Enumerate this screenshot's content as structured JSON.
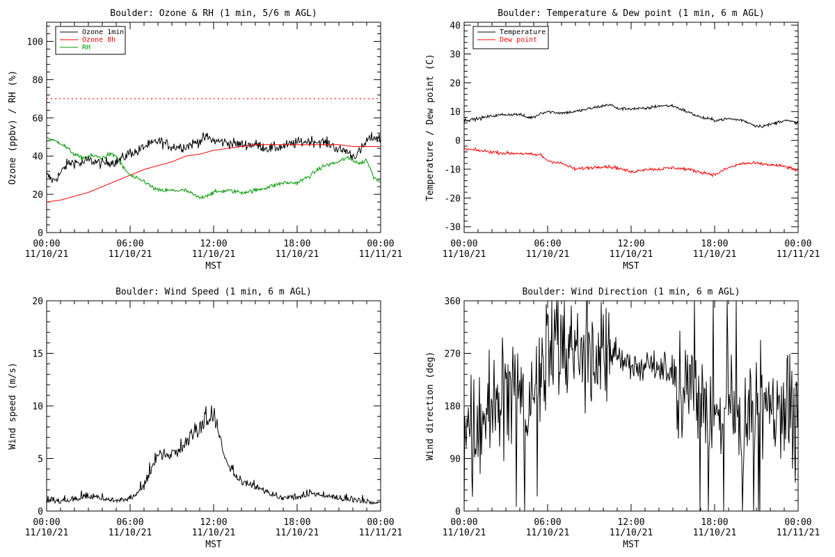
{
  "chart_data": [
    {
      "type": "line",
      "title": "Boulder: Ozone & RH (1 min, 5/6 m AGL)",
      "xlabel": "MST",
      "ylabel": "Ozone (ppbv) / RH (%)",
      "x_ticks": [
        {
          "hour": 0,
          "time": "00:00",
          "date": "11/10/21"
        },
        {
          "hour": 6,
          "time": "06:00",
          "date": "11/10/21"
        },
        {
          "hour": 12,
          "time": "12:00",
          "date": "11/10/21"
        },
        {
          "hour": 18,
          "time": "18:00",
          "date": "11/10/21"
        },
        {
          "hour": 24,
          "time": "00:00",
          "date": "11/11/21"
        }
      ],
      "xlim": [
        0,
        24
      ],
      "ylim": [
        0,
        110
      ],
      "y_ticks": [
        0,
        20,
        40,
        60,
        80,
        100
      ],
      "legend_position": "top-left",
      "reference_lines": [
        {
          "y": 70,
          "color": "#ff0000",
          "style": "dotted"
        }
      ],
      "series": [
        {
          "name": "Ozone 1min",
          "color": "#000000",
          "noise": 2,
          "x": [
            0,
            0.5,
            1,
            1.5,
            2,
            2.5,
            3,
            3.5,
            4,
            4.5,
            5,
            5.5,
            6,
            6.5,
            7,
            7.5,
            8,
            9,
            10,
            11,
            11.5,
            12,
            13,
            14,
            15,
            16,
            17,
            18,
            19,
            20,
            20.5,
            21,
            21.5,
            22,
            22.5,
            23,
            23.5,
            24
          ],
          "values": [
            30,
            27,
            31,
            36,
            37,
            36,
            38,
            37,
            36,
            37,
            37,
            39,
            42,
            42,
            45,
            46,
            48,
            45,
            45,
            48,
            50,
            48,
            47,
            46,
            46,
            44,
            45,
            47,
            48,
            47,
            46,
            43,
            43,
            40,
            42,
            48,
            50,
            49
          ]
        },
        {
          "name": "Ozone 8h",
          "color": "#ff0000",
          "noise": 0,
          "x": [
            0,
            1,
            2,
            3,
            4,
            5,
            6,
            7,
            8,
            9,
            10,
            11,
            12,
            13,
            14,
            15,
            16,
            17,
            18,
            19,
            20,
            21,
            22,
            23,
            24
          ],
          "values": [
            16,
            17,
            19,
            21,
            24,
            27,
            30,
            33,
            35,
            37,
            40,
            41,
            43,
            44,
            45,
            46,
            46,
            46,
            46,
            46,
            46,
            46,
            45,
            45,
            45
          ]
        },
        {
          "name": "RH",
          "color": "#009900",
          "noise": 0.8,
          "x": [
            0,
            0.5,
            1,
            1.5,
            2,
            2.5,
            3,
            3.5,
            4,
            4.5,
            5,
            5.5,
            6,
            6.5,
            7,
            7.5,
            8,
            9,
            10,
            11,
            12,
            13,
            14,
            15,
            16,
            17,
            18,
            19,
            19.5,
            20,
            20.5,
            21,
            21.5,
            22,
            22.5,
            23,
            23.5,
            24
          ],
          "values": [
            50,
            48,
            47,
            44,
            41,
            39,
            40,
            40,
            39,
            41,
            40,
            34,
            30,
            28,
            27,
            24,
            22,
            22,
            22,
            18,
            21,
            22,
            21,
            22,
            24,
            26,
            26,
            30,
            33,
            35,
            36,
            37,
            39,
            38,
            36,
            38,
            29,
            27
          ]
        }
      ]
    },
    {
      "type": "line",
      "title": "Boulder: Temperature & Dew point (1 min, 6 m AGL)",
      "xlabel": "MST",
      "ylabel": "Temperature / Dew point (C)",
      "x_ticks": [
        {
          "hour": 0,
          "time": "00:00",
          "date": "11/10/21"
        },
        {
          "hour": 6,
          "time": "06:00",
          "date": "11/10/21"
        },
        {
          "hour": 12,
          "time": "12:00",
          "date": "11/10/21"
        },
        {
          "hour": 18,
          "time": "18:00",
          "date": "11/10/21"
        },
        {
          "hour": 24,
          "time": "00:00",
          "date": "11/11/21"
        }
      ],
      "xlim": [
        0,
        24
      ],
      "ylim": [
        -32,
        41
      ],
      "y_ticks": [
        -30,
        -20,
        -10,
        0,
        10,
        20,
        30,
        40
      ],
      "legend_position": "top-left",
      "series": [
        {
          "name": "Temperature",
          "color": "#000000",
          "noise": 0.4,
          "x": [
            0,
            1,
            2,
            3,
            4,
            4.5,
            5,
            5.5,
            6,
            7,
            8,
            9,
            10,
            10.5,
            11,
            12,
            13,
            14,
            15,
            16,
            17,
            18,
            19,
            20,
            21,
            21.5,
            22,
            23,
            24
          ],
          "values": [
            7,
            7.5,
            8.5,
            9,
            9,
            8,
            8,
            9.5,
            10,
            9.5,
            10,
            11,
            12,
            12.5,
            11,
            11,
            11,
            12,
            12,
            10,
            8,
            7,
            7.5,
            7,
            5,
            5,
            5.5,
            7,
            6
          ]
        },
        {
          "name": "Dew point",
          "color": "#ff0000",
          "noise": 0.4,
          "x": [
            0,
            1,
            2,
            3,
            4,
            5,
            5.5,
            6,
            7,
            8,
            9,
            10,
            11,
            12,
            13,
            14,
            15,
            16,
            17,
            18,
            19,
            20,
            21,
            22,
            23,
            24
          ],
          "values": [
            -3,
            -3.5,
            -4,
            -4.5,
            -4.5,
            -5,
            -5,
            -7,
            -8,
            -10,
            -9.5,
            -9,
            -9.5,
            -11,
            -10,
            -10,
            -9.5,
            -10,
            -11,
            -12,
            -9.5,
            -8,
            -8,
            -8.5,
            -9,
            -10.5
          ]
        }
      ]
    },
    {
      "type": "line",
      "title": "Boulder: Wind Speed (1 min, 6 m AGL)",
      "xlabel": "MST",
      "ylabel": "Wind speed (m/s)",
      "x_ticks": [
        {
          "hour": 0,
          "time": "00:00",
          "date": "11/10/21"
        },
        {
          "hour": 6,
          "time": "06:00",
          "date": "11/10/21"
        },
        {
          "hour": 12,
          "time": "12:00",
          "date": "11/10/21"
        },
        {
          "hour": 18,
          "time": "18:00",
          "date": "11/10/21"
        },
        {
          "hour": 24,
          "time": "00:00",
          "date": "11/11/21"
        }
      ],
      "xlim": [
        0,
        24
      ],
      "ylim": [
        0,
        20
      ],
      "y_ticks": [
        0,
        5,
        10,
        15,
        20
      ],
      "series": [
        {
          "color": "#000000",
          "noise": 0.9,
          "x": [
            0,
            1,
            2,
            3,
            4,
            5,
            6,
            7,
            7.5,
            8,
            9,
            10,
            11,
            11.5,
            12,
            12.5,
            13,
            14,
            15,
            16,
            17,
            18,
            19,
            20,
            21,
            22,
            23,
            24
          ],
          "values": [
            0.8,
            0.7,
            0.9,
            1.2,
            1.0,
            0.8,
            1.0,
            2.0,
            3.5,
            5.0,
            4.5,
            6.0,
            7.0,
            8.0,
            8.5,
            6.0,
            4.0,
            2.5,
            2.0,
            1.5,
            1.0,
            1.0,
            1.5,
            1.2,
            1.0,
            0.8,
            0.7,
            0.6
          ]
        }
      ]
    },
    {
      "type": "line",
      "title": "Boulder: Wind Direction (1 min, 6 m AGL)",
      "xlabel": "MST",
      "ylabel": "Wind direction (deg)",
      "x_ticks": [
        {
          "hour": 0,
          "time": "00:00",
          "date": "11/10/21"
        },
        {
          "hour": 6,
          "time": "06:00",
          "date": "11/10/21"
        },
        {
          "hour": 12,
          "time": "12:00",
          "date": "11/10/21"
        },
        {
          "hour": 18,
          "time": "18:00",
          "date": "11/10/21"
        },
        {
          "hour": 24,
          "time": "00:00",
          "date": "11/11/21"
        }
      ],
      "xlim": [
        0,
        24
      ],
      "ylim": [
        0,
        360
      ],
      "y_ticks": [
        0,
        90,
        180,
        270,
        360
      ],
      "series": [
        {
          "color": "#000000",
          "noise": 60,
          "x": [
            0,
            1,
            2,
            3,
            4,
            4.5,
            5,
            5.5,
            6,
            7,
            8,
            9,
            10,
            11,
            12,
            13,
            14,
            15,
            16,
            17,
            18,
            19,
            20,
            21,
            22,
            23,
            24
          ],
          "values": [
            150,
            130,
            185,
            200,
            210,
            160,
            200,
            250,
            290,
            280,
            270,
            280,
            285,
            265,
            255,
            250,
            250,
            240,
            200,
            190,
            170,
            180,
            150,
            180,
            200,
            190,
            120
          ]
        }
      ]
    }
  ]
}
